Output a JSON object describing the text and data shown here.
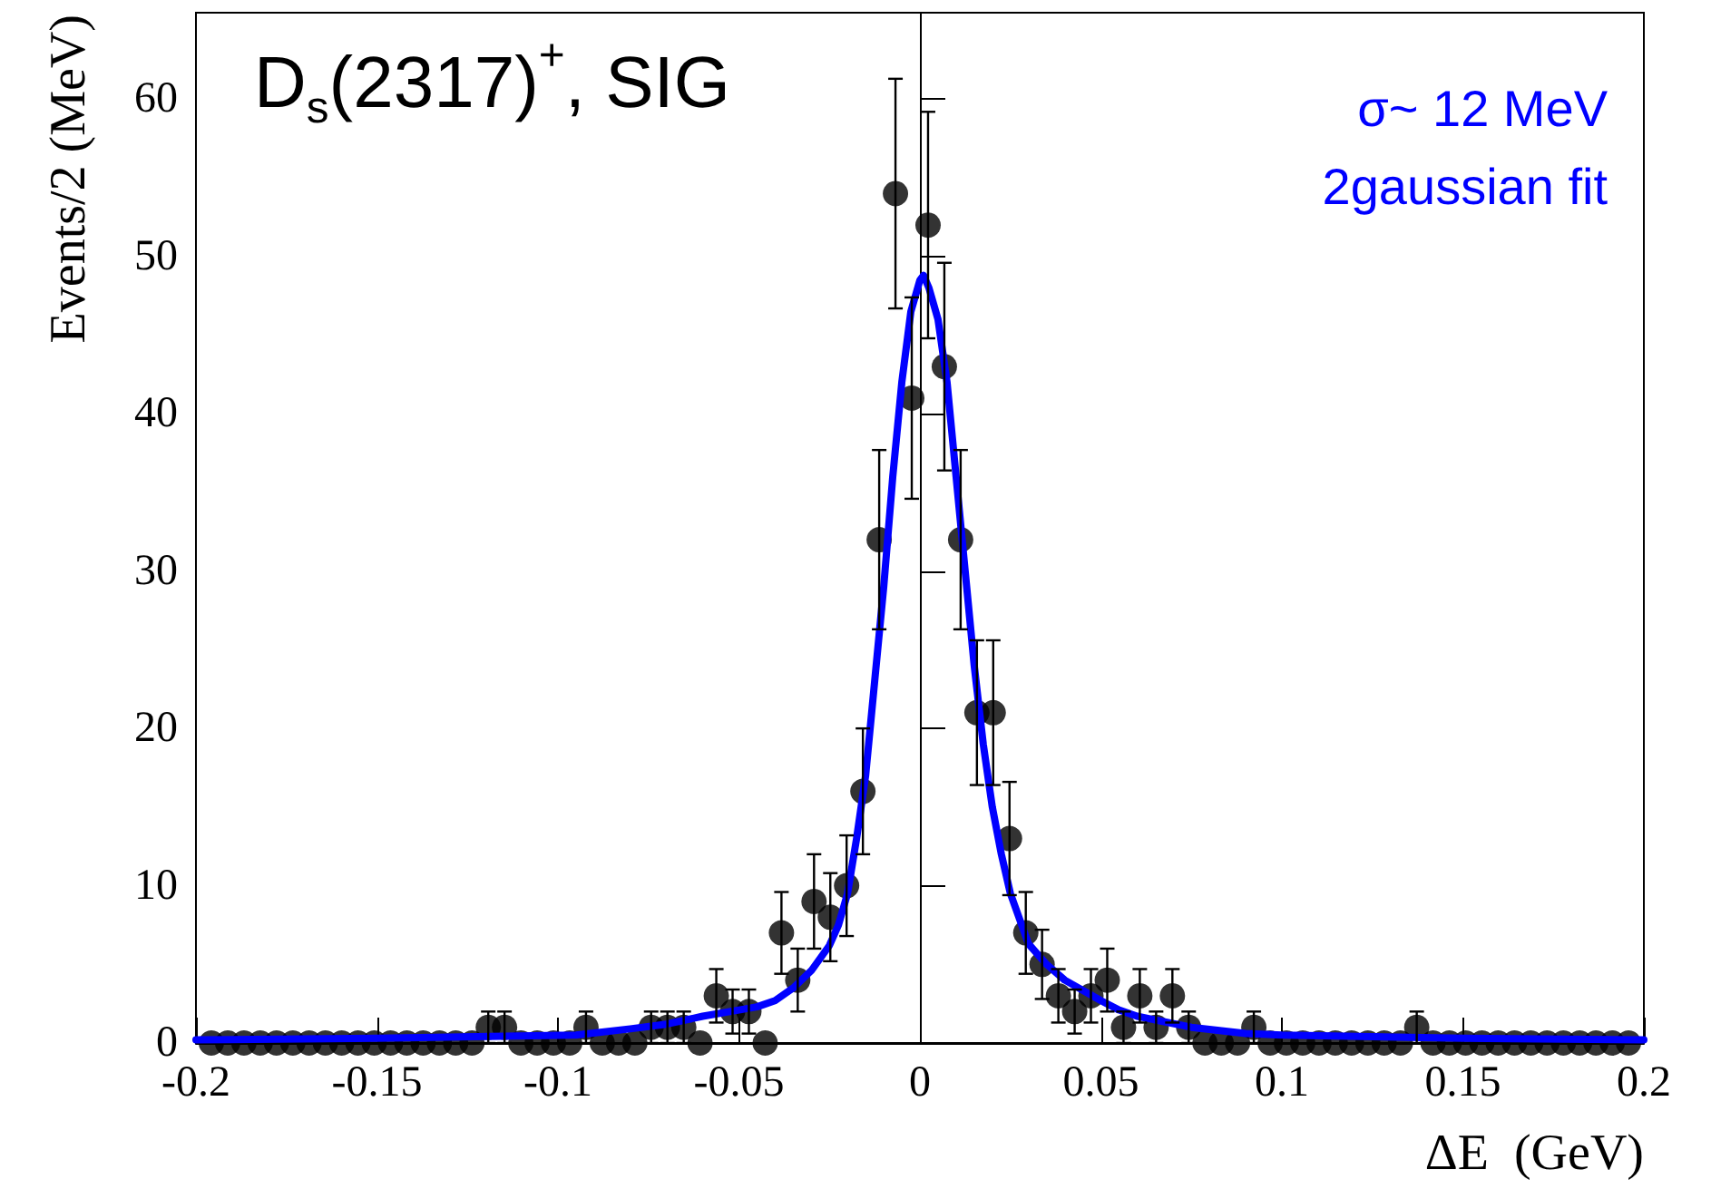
{
  "chart_data": {
    "type": "scatter",
    "annotations": [
      "D$_{s}$(2317)$^{+}$, SIG",
      "σ~ 12 MeV",
      "2gaussian fit"
    ],
    "xlabel": "ΔE  (GeV)",
    "ylabel": "Events/2 (MeV)",
    "xlim": [
      -0.2,
      0.2
    ],
    "xticks": [
      -0.2,
      -0.15,
      -0.1,
      -0.05,
      0,
      0.05,
      0.1,
      0.15,
      0.2
    ],
    "ylim": [
      0,
      65.5
    ],
    "yticks": [
      0,
      10,
      20,
      30,
      40,
      50,
      60
    ],
    "series": [
      {
        "marker": "circle",
        "color": "#000000",
        "x": [
          -0.19575,
          -0.19125,
          -0.18675,
          -0.18225,
          -0.17775,
          -0.17325,
          -0.16875,
          -0.16425,
          -0.15975,
          -0.15525,
          -0.15075,
          -0.14625,
          -0.14175,
          -0.13725,
          -0.13275,
          -0.12825,
          -0.12375,
          -0.11925,
          -0.11475,
          -0.11025,
          -0.10575,
          -0.10125,
          -0.09675,
          -0.09225,
          -0.08775,
          -0.08325,
          -0.07875,
          -0.07425,
          -0.06975,
          -0.06525,
          -0.06075,
          -0.05625,
          -0.05175,
          -0.04725,
          -0.04275,
          -0.03825,
          -0.03375,
          -0.02925,
          -0.02475,
          -0.02025,
          -0.01575,
          -0.01125,
          -0.00675,
          -0.00225,
          0.00225,
          0.00675,
          0.01125,
          0.01575,
          0.02025,
          0.02475,
          0.02925,
          0.03375,
          0.03825,
          0.04275,
          0.04725,
          0.05175,
          0.05625,
          0.06075,
          0.06525,
          0.06975,
          0.07425,
          0.07875,
          0.08325,
          0.08775,
          0.09225,
          0.09675,
          0.10125,
          0.10575,
          0.11025,
          0.11475,
          0.11925,
          0.12375,
          0.12825,
          0.13275,
          0.13725,
          0.14175,
          0.14625,
          0.15075,
          0.15525,
          0.15975,
          0.16425,
          0.16875,
          0.17325,
          0.17775,
          0.18225,
          0.18675,
          0.19125,
          0.19575
        ],
        "values": [
          0,
          0,
          0,
          0,
          0,
          0,
          0,
          0,
          0,
          0,
          0,
          0,
          0,
          0,
          0,
          0,
          0,
          1,
          1,
          0,
          0,
          0,
          0,
          1,
          0,
          0,
          0,
          1,
          1,
          1,
          0,
          3,
          2,
          2,
          0,
          7,
          4,
          9,
          8,
          10,
          16,
          32,
          54,
          41,
          52,
          43,
          32,
          21,
          21,
          13,
          7,
          5,
          3,
          2,
          3,
          4,
          1,
          3,
          1,
          3,
          1,
          0,
          0,
          0,
          1,
          0,
          0,
          0,
          0,
          0,
          0,
          0,
          0,
          0,
          1,
          0,
          0,
          0,
          0,
          0,
          0,
          0,
          0,
          0,
          0,
          0,
          0,
          0
        ],
        "errors": [
          null,
          null,
          null,
          null,
          null,
          null,
          null,
          null,
          null,
          null,
          null,
          null,
          null,
          null,
          null,
          null,
          null,
          1,
          1,
          null,
          null,
          null,
          null,
          1,
          null,
          null,
          null,
          1,
          1,
          1,
          null,
          1.7,
          1.4,
          1.4,
          null,
          2.6,
          2,
          3,
          2.8,
          3.2,
          4,
          5.7,
          7.3,
          6.4,
          7.2,
          6.6,
          5.7,
          4.6,
          4.6,
          3.6,
          2.6,
          2.2,
          1.7,
          1.4,
          1.7,
          2,
          1,
          1.7,
          1,
          1.7,
          1,
          null,
          null,
          null,
          1,
          null,
          null,
          null,
          null,
          null,
          null,
          null,
          null,
          null,
          1,
          null,
          null,
          null,
          null,
          null,
          null,
          null,
          null,
          null,
          null,
          null,
          null,
          null
        ]
      },
      {
        "type": "line",
        "marker": "none",
        "line_style": "solid",
        "color": "#0000ff",
        "x": [
          -0.2,
          -0.15,
          -0.095,
          -0.08,
          -0.07,
          -0.06,
          -0.05,
          -0.045,
          -0.04,
          -0.035,
          -0.03,
          -0.025,
          -0.0225,
          -0.02,
          -0.0175,
          -0.015,
          -0.0125,
          -0.01,
          -0.0075,
          -0.005,
          -0.0025,
          0,
          0.001,
          0.0025,
          0.005,
          0.0075,
          0.01,
          0.0125,
          0.015,
          0.0175,
          0.02,
          0.0225,
          0.025,
          0.03,
          0.035,
          0.04,
          0.05,
          0.055,
          0.06,
          0.075,
          0.09,
          0.1,
          0.15,
          0.2
        ],
        "values": [
          0.2,
          0.3,
          0.5,
          0.9,
          1.2,
          1.7,
          2.1,
          2.3,
          2.7,
          3.5,
          4.6,
          6.2,
          7.5,
          9.5,
          13,
          17,
          23,
          29,
          36,
          42,
          46.5,
          48.5,
          48.8,
          48,
          46,
          42,
          36,
          30,
          24,
          19,
          15,
          12,
          9.5,
          6.3,
          5,
          4,
          2.7,
          2.1,
          1.7,
          1,
          0.6,
          0.5,
          0.3,
          0.2
        ]
      }
    ]
  }
}
